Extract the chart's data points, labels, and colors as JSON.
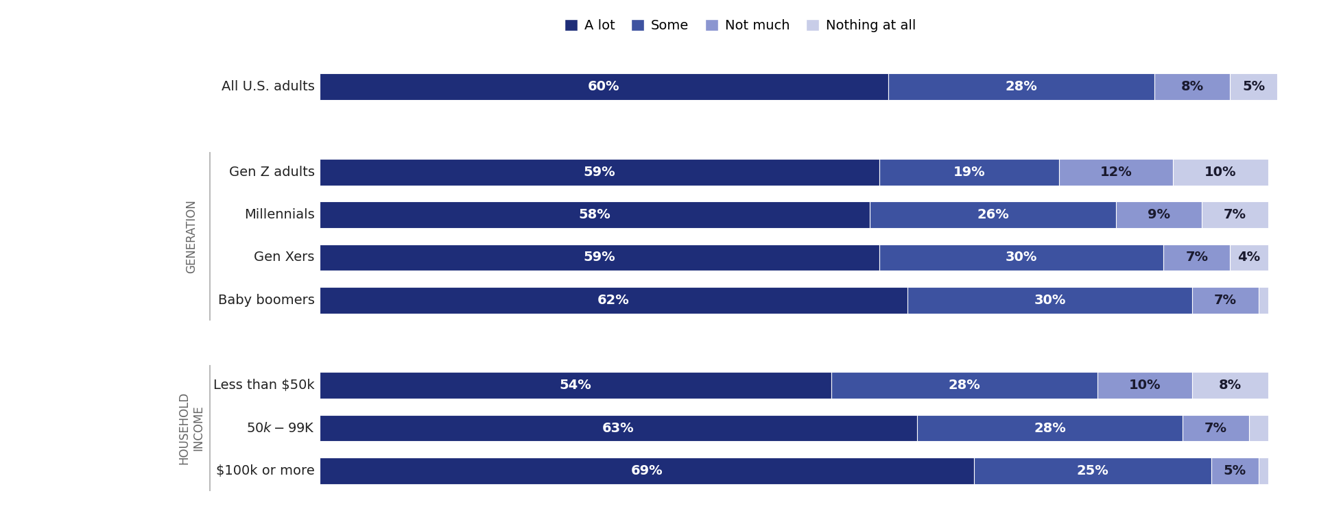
{
  "categories": [
    "All U.S. adults",
    "Gen Z adults",
    "Millennials",
    "Gen Xers",
    "Baby boomers",
    "Less than $50k",
    "$50k-$99K",
    "$100k or more"
  ],
  "values": {
    "a_lot": [
      60,
      59,
      58,
      59,
      62,
      54,
      63,
      69
    ],
    "some": [
      28,
      19,
      26,
      30,
      30,
      28,
      28,
      25
    ],
    "not_much": [
      8,
      12,
      9,
      7,
      7,
      10,
      7,
      5
    ],
    "nothing_at_all": [
      5,
      10,
      7,
      4,
      1,
      8,
      2,
      1
    ]
  },
  "colors": {
    "a_lot": "#1e2d78",
    "some": "#3d52a0",
    "not_much": "#8b96d0",
    "nothing_at_all": "#c8cde8"
  },
  "legend_labels": [
    "A lot",
    "Some",
    "Not much",
    "Nothing at all"
  ],
  "background_color": "#ffffff",
  "bar_height": 0.62,
  "text_color_light": "#ffffff",
  "text_color_dark": "#1a1a2e",
  "group_label_generation": "GENERATION",
  "group_label_income": "HOUSEHOLD\nINCOME",
  "group_label_color": "#666666",
  "category_label_color": "#222222",
  "y_positions": [
    9.5,
    7.5,
    6.5,
    5.5,
    4.5,
    2.5,
    1.5,
    0.5
  ],
  "gen_indices": [
    1,
    2,
    3,
    4
  ],
  "income_indices": [
    5,
    6,
    7
  ]
}
